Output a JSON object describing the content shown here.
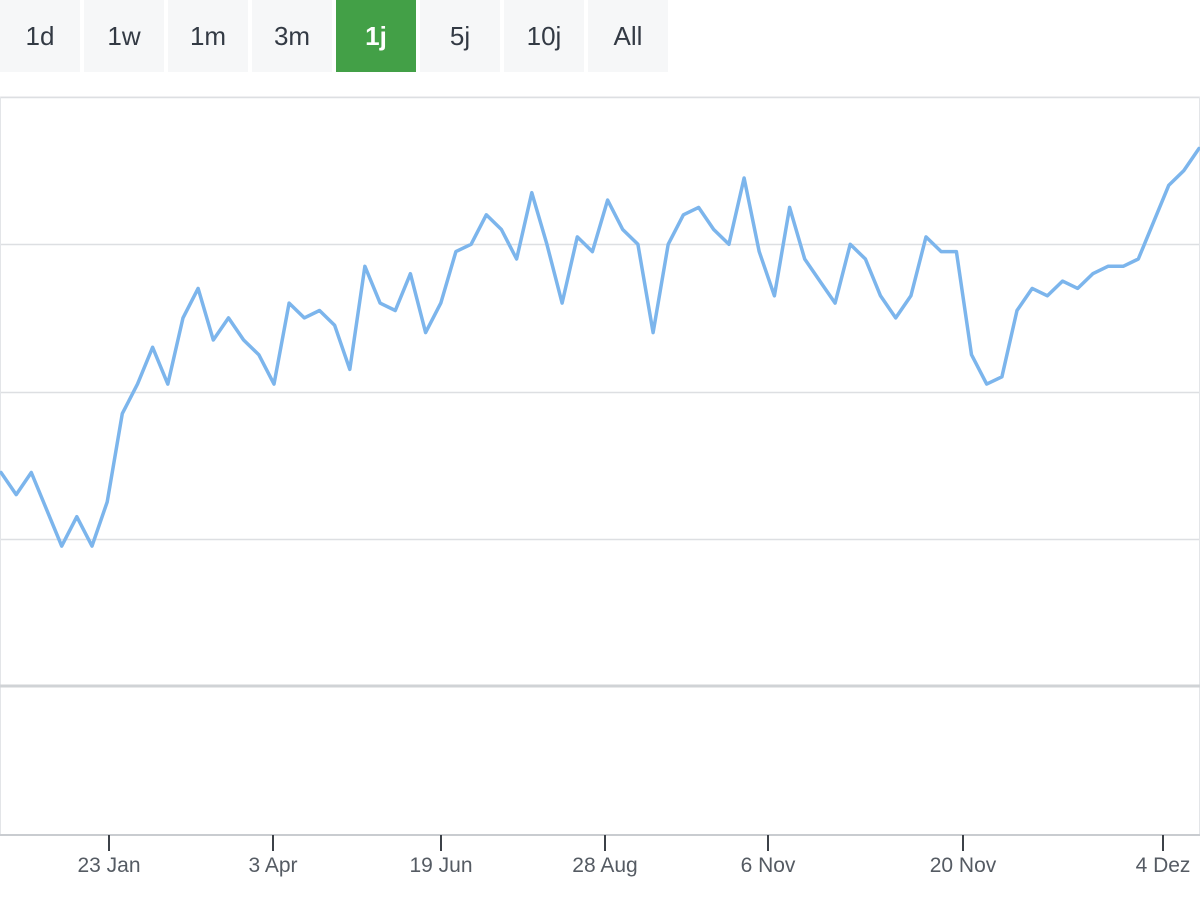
{
  "range_selector": {
    "buttons": [
      {
        "label": "1d",
        "active": false
      },
      {
        "label": "1w",
        "active": false
      },
      {
        "label": "1m",
        "active": false
      },
      {
        "label": "3m",
        "active": false
      },
      {
        "label": "1j",
        "active": true
      },
      {
        "label": "5j",
        "active": false
      },
      {
        "label": "10j",
        "active": false
      },
      {
        "label": "All",
        "active": false
      }
    ],
    "active_color": "#43a047"
  },
  "chart_data": {
    "type": "line",
    "title": "",
    "xlabel": "",
    "ylabel": "",
    "x_ticks": [
      "23 Jan",
      "3 Apr",
      "19 Jun",
      "28 Aug",
      "6 Nov",
      "20 Nov",
      "4 Dez"
    ],
    "ylim": [
      0,
      4
    ],
    "grid": true,
    "legend": "none",
    "line_color": "#7cb5ec",
    "series": [
      {
        "values": [
          1.45,
          1.3,
          1.45,
          1.2,
          0.95,
          1.15,
          0.95,
          1.25,
          1.85,
          2.05,
          2.3,
          2.05,
          2.5,
          2.7,
          2.35,
          2.5,
          2.35,
          2.25,
          2.05,
          2.6,
          2.5,
          2.55,
          2.45,
          2.15,
          2.85,
          2.6,
          2.55,
          2.8,
          2.4,
          2.6,
          2.95,
          3.0,
          3.2,
          3.1,
          2.9,
          3.35,
          3.0,
          2.6,
          3.05,
          2.95,
          3.3,
          3.1,
          3.0,
          2.4,
          3.0,
          3.2,
          3.25,
          3.1,
          3.0,
          3.45,
          2.95,
          2.65,
          3.25,
          2.9,
          2.75,
          2.6,
          3.0,
          2.9,
          2.65,
          2.5,
          2.65,
          3.05,
          2.95,
          2.95,
          2.25,
          2.05,
          2.1,
          2.55,
          2.7,
          2.65,
          2.75,
          2.7,
          2.8,
          2.85,
          2.85,
          2.9,
          3.15,
          3.4,
          3.5,
          3.65
        ]
      }
    ]
  }
}
